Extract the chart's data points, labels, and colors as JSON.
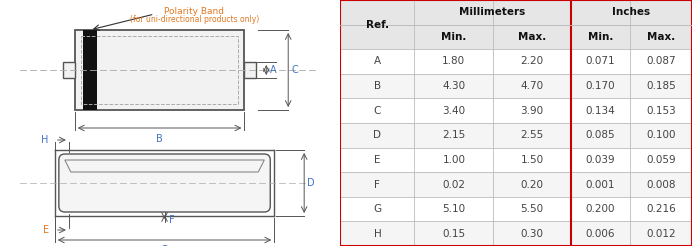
{
  "table": {
    "refs": [
      "A",
      "B",
      "C",
      "D",
      "E",
      "F",
      "G",
      "H"
    ],
    "mm_min": [
      "1.80",
      "4.30",
      "3.40",
      "2.15",
      "1.00",
      "0.02",
      "5.10",
      "0.15"
    ],
    "mm_max": [
      "2.20",
      "4.70",
      "3.90",
      "2.55",
      "1.50",
      "0.20",
      "5.50",
      "0.30"
    ],
    "in_min": [
      "0.071",
      "0.170",
      "0.134",
      "0.085",
      "0.039",
      "0.001",
      "0.200",
      "0.006"
    ],
    "in_max": [
      "0.087",
      "0.185",
      "0.153",
      "0.100",
      "0.059",
      "0.008",
      "0.216",
      "0.012"
    ],
    "ref_label": "Ref.",
    "mm_label": "Millimeters",
    "in_label": "Inches",
    "subheaders": [
      "Min.",
      "Max.",
      "Min.",
      "Max."
    ],
    "header_bg": "#e6e6e6",
    "border_color": "#bbbbbb",
    "red_border": "#cc0000",
    "data_text_color": "#444444",
    "header_text_color": "#111111"
  },
  "diagram": {
    "polarity_text": "Polarity Band",
    "polarity_sub": "(for uni-directional products only)",
    "label_color": "#e07820",
    "dim_color": "#4472c4",
    "line_color": "#555555",
    "band_color": "#111111",
    "body_fill": "#f2f2f2",
    "dash_color": "#aaaaaa"
  }
}
